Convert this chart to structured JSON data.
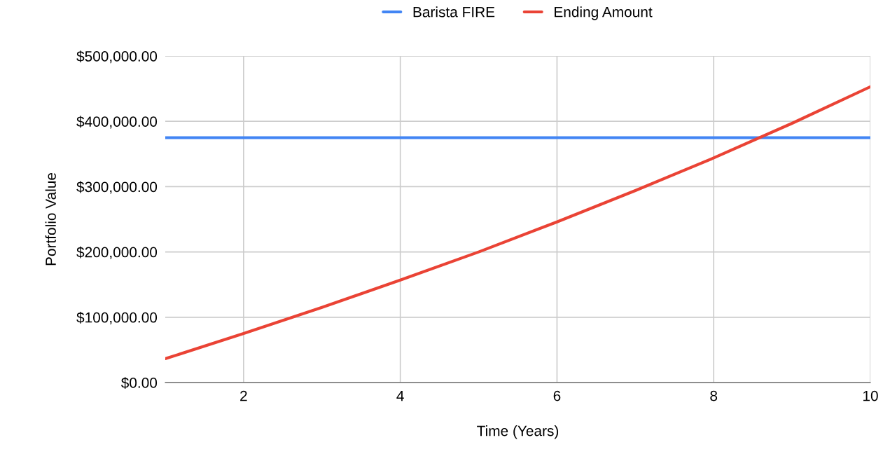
{
  "chart_data": {
    "type": "line",
    "xlabel": "Time (Years)",
    "ylabel": "Portfolio Value",
    "x": [
      1,
      2,
      3,
      4,
      5,
      6,
      7,
      8,
      9,
      10
    ],
    "series": [
      {
        "name": "Barista FIRE",
        "color": "#4285f4",
        "values": [
          375000,
          375000,
          375000,
          375000,
          375000,
          375000,
          375000,
          375000,
          375000,
          375000
        ]
      },
      {
        "name": "Ending Amount",
        "color": "#ea4335",
        "values": [
          36500,
          75000,
          115000,
          157000,
          200000,
          246000,
          294000,
          344000,
          397000,
          453000
        ]
      }
    ],
    "xlim": [
      1,
      10
    ],
    "xticks": [
      2,
      4,
      6,
      8,
      10
    ],
    "ylim": [
      0,
      500000
    ],
    "yticks": [
      {
        "value": 0,
        "label": "$0.00"
      },
      {
        "value": 100000,
        "label": "$100,000.00"
      },
      {
        "value": 200000,
        "label": "$200,000.00"
      },
      {
        "value": 300000,
        "label": "$300,000.00"
      },
      {
        "value": 400000,
        "label": "$400,000.00"
      },
      {
        "value": 500000,
        "label": "$500,000.00"
      }
    ],
    "grid": true,
    "legend": "top",
    "marker": "none",
    "line_style": "solid"
  }
}
